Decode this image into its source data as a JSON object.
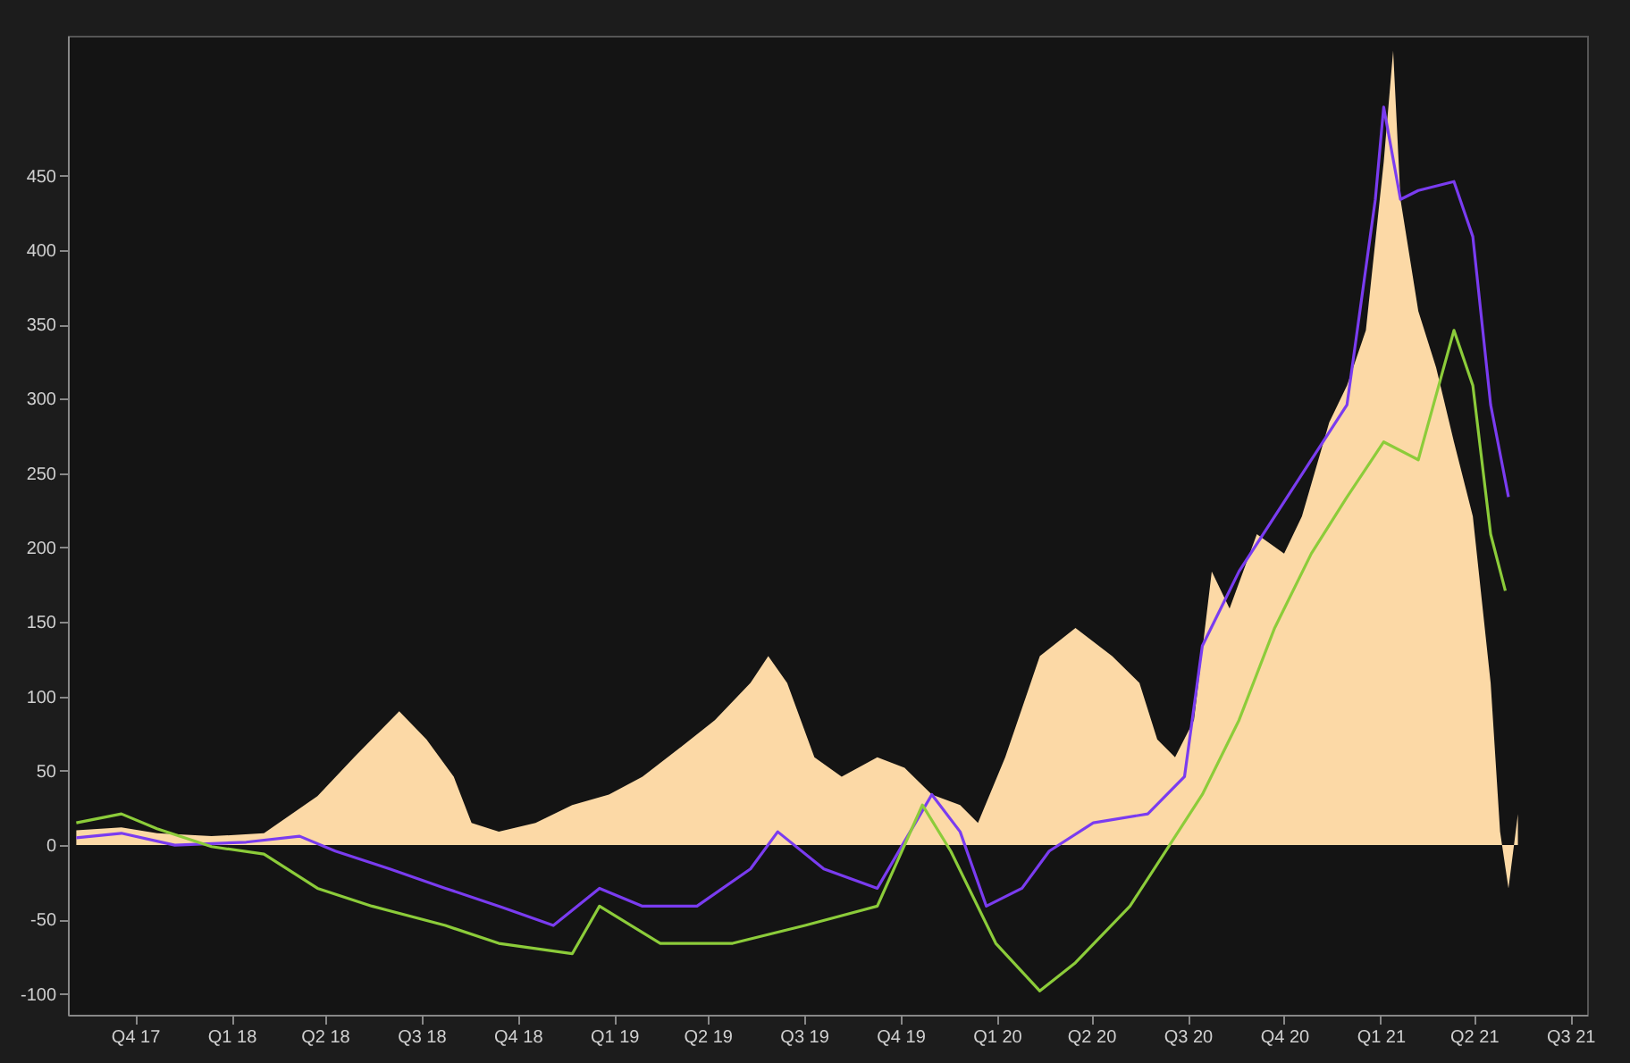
{
  "chart_data": {
    "type": "line",
    "xlim": [
      "2017-09-12",
      "2021-08-31"
    ],
    "ylim": [
      -114,
      544
    ],
    "yticks": [
      -100,
      -50,
      0,
      50,
      100,
      150,
      200,
      250,
      300,
      350,
      400,
      450
    ],
    "xticks": [
      {
        "value": "2017-11-15",
        "label": "Q4 17"
      },
      {
        "value": "2018-02-15",
        "label": "Q1 18"
      },
      {
        "value": "2018-05-15",
        "label": "Q2 18"
      },
      {
        "value": "2018-08-15",
        "label": "Q3 18"
      },
      {
        "value": "2018-11-15",
        "label": "Q4 18"
      },
      {
        "value": "2019-02-15",
        "label": "Q1 19"
      },
      {
        "value": "2019-05-15",
        "label": "Q2 19"
      },
      {
        "value": "2019-08-15",
        "label": "Q3 19"
      },
      {
        "value": "2019-11-15",
        "label": "Q4 19"
      },
      {
        "value": "2020-02-15",
        "label": "Q1 20"
      },
      {
        "value": "2020-05-15",
        "label": "Q2 20"
      },
      {
        "value": "2020-08-15",
        "label": "Q3 20"
      },
      {
        "value": "2020-11-15",
        "label": "Q4 20"
      },
      {
        "value": "2021-02-15",
        "label": "Q1 21"
      },
      {
        "value": "2021-05-15",
        "label": "Q2 21"
      },
      {
        "value": "2021-08-15",
        "label": "Q3 21"
      }
    ],
    "grid": false,
    "series": [
      {
        "type": "area",
        "color": "#fcd9a6",
        "x": [
          "2017-09-20",
          "2017-11-02",
          "2017-12-06",
          "2018-01-27",
          "2018-03-18",
          "2018-05-08",
          "2018-06-12",
          "2018-07-25",
          "2018-08-20",
          "2018-09-15",
          "2018-10-02",
          "2018-10-28",
          "2018-12-02",
          "2019-01-06",
          "2019-02-10",
          "2019-03-14",
          "2019-04-18",
          "2019-05-22",
          "2019-06-25",
          "2019-07-12",
          "2019-07-30",
          "2019-08-25",
          "2019-09-20",
          "2019-10-24",
          "2019-11-19",
          "2019-12-15",
          "2020-01-11",
          "2020-01-28",
          "2020-02-23",
          "2020-03-27",
          "2020-04-30",
          "2020-06-04",
          "2020-06-30",
          "2020-07-17",
          "2020-08-03",
          "2020-08-21",
          "2020-09-07",
          "2020-09-24",
          "2020-10-20",
          "2020-11-15",
          "2020-12-02",
          "2020-12-28",
          "2021-01-14",
          "2021-02-01",
          "2021-02-18",
          "2021-02-27",
          "2021-03-06",
          "2021-03-23",
          "2021-04-09",
          "2021-04-26",
          "2021-05-14",
          "2021-05-31",
          "2021-06-09",
          "2021-06-17",
          "2021-06-26"
        ],
        "values": [
          10,
          12,
          8,
          6,
          8,
          33,
          59,
          90,
          71,
          46,
          15,
          9,
          15,
          27,
          34,
          46,
          65,
          84,
          109,
          127,
          109,
          59,
          46,
          59,
          52,
          34,
          27,
          15,
          59,
          127,
          146,
          127,
          109,
          71,
          59,
          84,
          184,
          159,
          209,
          196,
          221,
          284,
          309,
          346,
          459,
          534,
          434,
          359,
          321,
          271,
          221,
          109,
          9,
          -29,
          21
        ]
      },
      {
        "color": "#7a3cf0",
        "x": [
          "2017-09-20",
          "2017-11-02",
          "2017-12-23",
          "2018-03-01",
          "2018-04-21",
          "2018-05-25",
          "2018-07-16",
          "2018-09-07",
          "2018-10-28",
          "2018-12-19",
          "2019-02-01",
          "2019-03-14",
          "2019-05-05",
          "2019-06-25",
          "2019-07-21",
          "2019-09-03",
          "2019-10-24",
          "2019-12-15",
          "2020-01-11",
          "2020-02-05",
          "2020-03-10",
          "2020-04-05",
          "2020-05-17",
          "2020-07-08",
          "2020-08-12",
          "2020-08-29",
          "2020-10-03",
          "2020-11-06",
          "2020-12-11",
          "2021-01-14",
          "2021-02-10",
          "2021-02-18",
          "2021-03-06",
          "2021-03-23",
          "2021-04-26",
          "2021-05-14",
          "2021-05-31",
          "2021-06-17"
        ],
        "values": [
          5,
          8,
          0,
          2,
          6,
          -4,
          -16,
          -29,
          -41,
          -54,
          -29,
          -41,
          -41,
          -16,
          9,
          -16,
          -29,
          34,
          9,
          -41,
          -29,
          -4,
          15,
          21,
          46,
          134,
          184,
          221,
          259,
          296,
          434,
          496,
          434,
          440,
          446,
          409,
          296,
          234
        ]
      },
      {
        "color": "#8ccc3a",
        "x": [
          "2017-09-20",
          "2017-11-02",
          "2017-12-06",
          "2018-01-27",
          "2018-03-18",
          "2018-05-08",
          "2018-06-29",
          "2018-09-07",
          "2018-10-28",
          "2019-01-06",
          "2019-02-01",
          "2019-03-31",
          "2019-06-08",
          "2019-08-16",
          "2019-10-24",
          "2019-12-06",
          "2020-01-02",
          "2020-02-14",
          "2020-03-27",
          "2020-04-30",
          "2020-06-21",
          "2020-07-25",
          "2020-08-29",
          "2020-10-03",
          "2020-11-06",
          "2020-12-11",
          "2021-01-14",
          "2021-02-18",
          "2021-03-23",
          "2021-04-26",
          "2021-05-14",
          "2021-05-31",
          "2021-06-14"
        ],
        "values": [
          15,
          21,
          11,
          -1,
          -6,
          -29,
          -41,
          -54,
          -66,
          -73,
          -41,
          -66,
          -66,
          -54,
          -41,
          27,
          -4,
          -66,
          -98,
          -79,
          -41,
          -4,
          34,
          84,
          146,
          196,
          234,
          271,
          259,
          346,
          309,
          209,
          171
        ]
      }
    ]
  }
}
